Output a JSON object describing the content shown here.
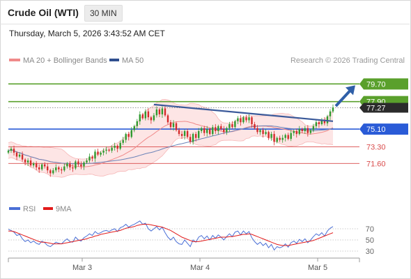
{
  "header": {
    "title": "Crude Oil (WTI)",
    "timeframe": "30 MIN",
    "datetime": "Thursday, March 5, 2026 3:43:52 AM CET"
  },
  "legend": {
    "items": [
      {
        "label": "MA 20 + Bollinger Bands",
        "color": "#f08a8a"
      },
      {
        "label": "MA 50",
        "color": "#2f4f8f"
      }
    ],
    "credit": "Research © 2026 Trading Central"
  },
  "chart_data": [
    {
      "type": "candlestick",
      "x_ticks": [
        "Mar 3",
        "Mar 4",
        "Mar 5"
      ],
      "ylim": [
        68.0,
        81.5
      ],
      "levels": [
        {
          "label": "79.70",
          "value": 79.7,
          "color": "#5aa02c",
          "style": "tag"
        },
        {
          "label": "77.90",
          "value": 77.9,
          "color": "#5aa02c",
          "style": "tag"
        },
        {
          "label": "77.27",
          "value": 77.27,
          "color": "#333333",
          "style": "price"
        },
        {
          "label": "75.10",
          "value": 75.1,
          "color": "#2a5bd7",
          "style": "tag"
        },
        {
          "label": "73.30",
          "value": 73.3,
          "color": "#d94b4b",
          "style": "text"
        },
        {
          "label": "71.60",
          "value": 71.6,
          "color": "#d94b4b",
          "style": "text"
        }
      ],
      "candles": [
        72.9,
        73.1,
        72.7,
        72.3,
        72.5,
        72.0,
        71.7,
        71.9,
        71.4,
        71.6,
        71.2,
        71.0,
        71.5,
        71.3,
        70.9,
        70.6,
        70.9,
        71.2,
        71.0,
        70.9,
        71.3,
        71.6,
        71.2,
        71.1,
        71.8,
        71.5,
        71.3,
        71.7,
        71.9,
        72.3,
        72.1,
        72.8,
        72.5,
        72.7,
        72.9,
        73.0,
        72.9,
        73.2,
        73.4,
        73.1,
        73.7,
        74.0,
        74.6,
        74.3,
        75.0,
        75.4,
        75.9,
        76.6,
        76.2,
        76.9,
        76.3,
        76.0,
        76.5,
        77.1,
        76.6,
        77.2,
        76.5,
        75.8,
        75.3,
        75.7,
        75.0,
        74.6,
        74.4,
        74.9,
        74.3,
        73.8,
        74.6,
        74.2,
        74.9,
        75.2,
        74.7,
        75.1,
        74.6,
        75.3,
        74.9,
        75.4,
        75.1,
        74.8,
        75.2,
        75.6,
        75.3,
        75.9,
        76.2,
        75.8,
        76.3,
        76.0,
        76.3,
        75.6,
        75.2,
        74.8,
        75.0,
        74.6,
        74.8,
        74.2,
        74.6,
        73.8,
        74.2,
        74.0,
        74.2,
        74.5,
        74.1,
        74.7,
        74.9,
        74.6,
        75.1,
        74.9,
        75.2,
        74.7,
        75.0,
        75.4,
        75.8,
        75.6,
        76.0,
        75.7,
        76.4,
        76.9,
        77.3
      ],
      "trendline": {
        "from": [
          71.1,
          77.6
        ],
        "to": [
          75.9,
          75.9
        ]
      },
      "arrow_target": 79.7
    },
    {
      "type": "line",
      "legend": [
        {
          "label": "RSI",
          "color": "#4a6fd6"
        },
        {
          "label": "9MA",
          "color": "#e21b1b"
        }
      ],
      "ylim": [
        20,
        90
      ],
      "y_ticks": [
        "70",
        "50",
        "30"
      ],
      "rsi": [
        69,
        67,
        64,
        58,
        60,
        52,
        47,
        50,
        45,
        48,
        44,
        42,
        48,
        45,
        40,
        38,
        42,
        46,
        44,
        43,
        48,
        52,
        47,
        46,
        55,
        50,
        48,
        54,
        57,
        61,
        58,
        65,
        61,
        63,
        66,
        67,
        65,
        68,
        70,
        65,
        72,
        74,
        78,
        73,
        76,
        78,
        81,
        84,
        78,
        80,
        70,
        66,
        70,
        74,
        68,
        73,
        63,
        55,
        50,
        55,
        47,
        43,
        42,
        50,
        44,
        38,
        50,
        46,
        55,
        58,
        52,
        57,
        50,
        58,
        53,
        59,
        55,
        50,
        56,
        61,
        56,
        64,
        66,
        59,
        66,
        61,
        65,
        54,
        47,
        42,
        46,
        40,
        44,
        36,
        42,
        32,
        38,
        36,
        38,
        43,
        37,
        45,
        48,
        44,
        51,
        47,
        52,
        45,
        50,
        56,
        61,
        58,
        63,
        57,
        66,
        71,
        74
      ],
      "ma9": [
        66,
        66,
        65,
        63,
        61,
        59,
        57,
        55,
        53,
        51,
        49,
        47,
        46,
        46,
        45,
        44,
        43,
        43,
        43,
        43,
        44,
        45,
        46,
        47,
        48,
        49,
        50,
        51,
        52,
        54,
        55,
        57,
        58,
        60,
        61,
        62,
        63,
        64,
        65,
        66,
        67,
        69,
        71,
        72,
        73,
        74,
        76,
        77,
        78,
        78,
        78,
        77,
        76,
        75,
        74,
        73,
        71,
        69,
        67,
        64,
        61,
        58,
        55,
        53,
        51,
        49,
        47,
        47,
        47,
        48,
        49,
        50,
        51,
        52,
        53,
        54,
        55,
        55,
        55,
        56,
        56,
        57,
        58,
        59,
        60,
        60,
        61,
        60,
        58,
        56,
        54,
        52,
        50,
        48,
        46,
        44,
        42,
        41,
        40,
        40,
        40,
        41,
        42,
        43,
        44,
        45,
        46,
        47,
        48,
        49,
        51,
        53,
        55,
        57,
        59,
        61,
        63
      ]
    }
  ]
}
